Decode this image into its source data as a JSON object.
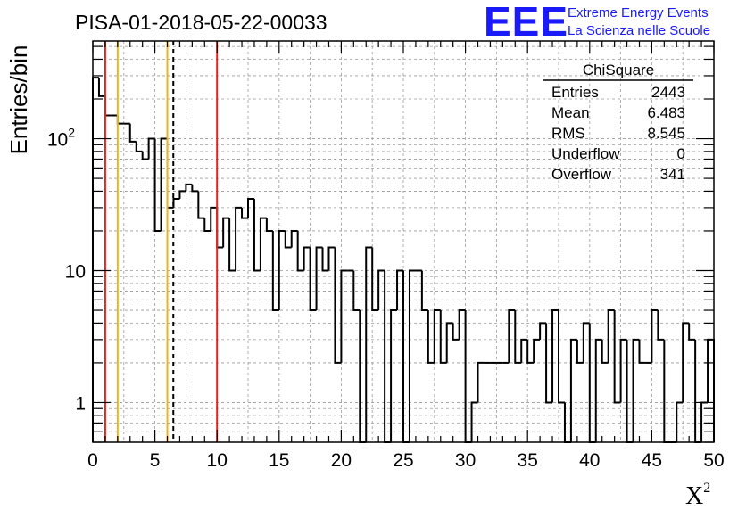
{
  "header": {
    "title": "PISA-01-2018-05-22-00033",
    "logo_text": "EEE",
    "logo_line1": "Extreme Energy Events",
    "logo_line2": "La Scienza nelle Scuole",
    "logo_color": "#1a1aff"
  },
  "stats": {
    "name": "ChiSquare",
    "rows": [
      {
        "label": "Entries",
        "value": "2443"
      },
      {
        "label": "Mean",
        "value": "6.483"
      },
      {
        "label": "RMS",
        "value": "8.545"
      },
      {
        "label": "Underflow",
        "value": "0"
      },
      {
        "label": "Overflow",
        "value": "341"
      }
    ]
  },
  "chart_data": {
    "type": "histogram",
    "xlabel_base": "X",
    "xlabel_sup": "2",
    "ylabel": "Entries/bin",
    "xlim": [
      0,
      50
    ],
    "ylim": [
      0.5,
      550
    ],
    "yscale": "log",
    "grid": true,
    "xticks": [
      0,
      5,
      10,
      15,
      20,
      25,
      30,
      35,
      40,
      45,
      50
    ],
    "xtick_labels": [
      "0",
      "5",
      "10",
      "15",
      "20",
      "25",
      "30",
      "35",
      "40",
      "45",
      "50"
    ],
    "yticks": [
      {
        "value": 1,
        "base": "1",
        "exp": ""
      },
      {
        "value": 10,
        "base": "10",
        "exp": ""
      },
      {
        "value": 100,
        "base": "10",
        "exp": "2"
      }
    ],
    "bin_width": 0.5,
    "bin_edges_start": 0,
    "values": [
      290,
      210,
      150,
      150,
      130,
      130,
      95,
      80,
      70,
      100,
      20,
      100,
      30,
      35,
      40,
      45,
      40,
      25,
      20,
      30,
      15,
      25,
      10,
      30,
      25,
      35,
      10,
      25,
      20,
      5,
      20,
      15,
      20,
      10,
      15,
      5,
      15,
      10,
      15,
      2,
      10,
      10,
      5,
      0,
      15,
      5,
      10,
      0,
      5,
      10,
      0,
      10,
      10,
      5,
      2,
      5,
      2,
      4,
      3,
      5,
      0,
      1,
      2,
      2,
      2,
      2,
      2,
      5,
      2,
      3,
      2,
      3,
      4,
      1,
      5,
      1,
      0,
      3,
      2,
      4,
      0,
      3,
      2,
      5,
      1,
      3,
      0,
      3,
      2,
      2,
      5,
      3,
      0,
      0,
      1,
      4,
      3,
      0,
      1,
      3
    ],
    "lines": [
      {
        "x": 1,
        "color": "#e8221c",
        "style": "solid"
      },
      {
        "x": 2,
        "color": "#f2b21a",
        "style": "solid"
      },
      {
        "x": 6,
        "color": "#f2b21a",
        "style": "solid"
      },
      {
        "x": 6.483,
        "color": "#000000",
        "style": "dashed"
      },
      {
        "x": 10,
        "color": "#e8221c",
        "style": "solid"
      }
    ]
  }
}
